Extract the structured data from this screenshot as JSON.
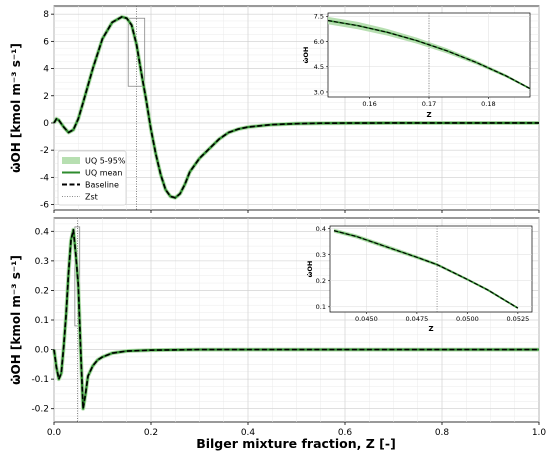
{
  "chart_data": [
    {
      "type": "line",
      "panel": "top",
      "ylabel": "ω̇OH [kmol m⁻³ s⁻¹]",
      "xlabel": "",
      "xlim": [
        0,
        1.0
      ],
      "ylim": [
        -6.4,
        8.6
      ],
      "yticks": [
        -6,
        -4,
        -2,
        0,
        2,
        4,
        6,
        8
      ],
      "xticks": [
        0.0,
        0.2,
        0.4,
        0.6,
        0.8,
        1.0
      ],
      "xtick_labels_visible": false,
      "grid": true,
      "legend_position": "lower-left",
      "legend": [
        "UQ 5-95%",
        "UQ mean",
        "Baseline",
        "Zst"
      ],
      "zst": 0.17,
      "zoom_box": {
        "x": [
          0.153,
          0.187
        ],
        "y": [
          2.7,
          7.7
        ]
      },
      "x": [
        0.0,
        0.005,
        0.01,
        0.02,
        0.03,
        0.04,
        0.05,
        0.06,
        0.08,
        0.1,
        0.12,
        0.14,
        0.15,
        0.16,
        0.17,
        0.18,
        0.19,
        0.2,
        0.21,
        0.22,
        0.23,
        0.24,
        0.25,
        0.26,
        0.27,
        0.28,
        0.3,
        0.32,
        0.34,
        0.36,
        0.38,
        0.4,
        0.45,
        0.5,
        0.55,
        0.6,
        0.7,
        0.8,
        0.9,
        1.0
      ],
      "series": [
        {
          "name": "UQ mean",
          "values": [
            0,
            0.3,
            0.2,
            -0.3,
            -0.7,
            -0.5,
            0.3,
            1.5,
            4.0,
            6.2,
            7.4,
            7.8,
            7.7,
            7.2,
            5.8,
            3.7,
            1.7,
            -0.5,
            -2.3,
            -3.8,
            -4.9,
            -5.4,
            -5.5,
            -5.2,
            -4.5,
            -3.6,
            -2.6,
            -1.9,
            -1.2,
            -0.7,
            -0.45,
            -0.3,
            -0.12,
            -0.05,
            -0.02,
            -0.01,
            0,
            0,
            0,
            0
          ]
        },
        {
          "name": "Baseline",
          "values": [
            0,
            0.3,
            0.2,
            -0.3,
            -0.7,
            -0.5,
            0.3,
            1.5,
            4.0,
            6.2,
            7.4,
            7.8,
            7.7,
            7.2,
            5.8,
            3.7,
            1.7,
            -0.5,
            -2.3,
            -3.8,
            -4.9,
            -5.4,
            -5.5,
            -5.2,
            -4.5,
            -3.6,
            -2.6,
            -1.9,
            -1.2,
            -0.7,
            -0.45,
            -0.3,
            -0.12,
            -0.05,
            -0.02,
            -0.01,
            0,
            0,
            0,
            0
          ]
        }
      ],
      "inset": {
        "xlabel": "Z",
        "ylabel": "ω̇OH",
        "xlim": [
          0.153,
          0.187
        ],
        "ylim": [
          2.7,
          7.7
        ],
        "xticks": [
          0.16,
          0.17,
          0.18
        ],
        "xtick_labels": [
          "0.16",
          "0.17",
          "0.18"
        ],
        "yticks": [
          3.0,
          4.5,
          6.0,
          7.5
        ],
        "ytick_labels": [
          "3.0",
          "4.5",
          "6.0",
          "7.5"
        ],
        "zst": 0.17,
        "x": [
          0.153,
          0.158,
          0.163,
          0.168,
          0.173,
          0.178,
          0.183,
          0.187
        ],
        "mean": [
          7.25,
          6.95,
          6.55,
          6.05,
          5.45,
          4.75,
          3.95,
          3.2
        ],
        "band_width": [
          0.22,
          0.22,
          0.2,
          0.18,
          0.15,
          0.12,
          0.09,
          0.06
        ]
      }
    },
    {
      "type": "line",
      "panel": "bottom",
      "ylabel": "ω̇OH [kmol m⁻³ s⁻¹]",
      "xlabel": "Bilger mixture fraction, Z [-]",
      "xlim": [
        0,
        1.0
      ],
      "ylim": [
        -0.245,
        0.445
      ],
      "yticks": [
        -0.2,
        -0.1,
        0.0,
        0.1,
        0.2,
        0.3,
        0.4
      ],
      "xticks": [
        0.0,
        0.2,
        0.4,
        0.6,
        0.8,
        1.0
      ],
      "grid": true,
      "zst": 0.0485,
      "zoom_box": {
        "x": [
          0.043,
          0.053
        ],
        "y": [
          0.08,
          0.415
        ]
      },
      "x": [
        0.0,
        0.005,
        0.01,
        0.015,
        0.02,
        0.025,
        0.03,
        0.035,
        0.04,
        0.045,
        0.05,
        0.055,
        0.06,
        0.065,
        0.07,
        0.08,
        0.09,
        0.1,
        0.12,
        0.15,
        0.2,
        0.3,
        0.4,
        0.6,
        0.8,
        1.0
      ],
      "series": [
        {
          "name": "UQ mean",
          "values": [
            0,
            -0.06,
            -0.1,
            -0.08,
            0.01,
            0.12,
            0.26,
            0.37,
            0.405,
            0.32,
            0.22,
            0.0,
            -0.2,
            -0.15,
            -0.09,
            -0.055,
            -0.035,
            -0.025,
            -0.012,
            -0.005,
            -0.002,
            0,
            0,
            0,
            0,
            0
          ]
        },
        {
          "name": "Baseline",
          "values": [
            0,
            -0.06,
            -0.1,
            -0.08,
            0.01,
            0.12,
            0.26,
            0.37,
            0.405,
            0.32,
            0.22,
            0.0,
            -0.2,
            -0.15,
            -0.09,
            -0.055,
            -0.035,
            -0.025,
            -0.012,
            -0.005,
            -0.002,
            0,
            0,
            0,
            0,
            0
          ]
        }
      ],
      "inset": {
        "xlabel": "Z",
        "ylabel": "ω̇OH",
        "xlim": [
          0.0432,
          0.0532
        ],
        "ylim": [
          0.08,
          0.41
        ],
        "xticks": [
          0.045,
          0.0475,
          0.05,
          0.0525
        ],
        "xtick_labels": [
          "0.0450",
          "0.0475",
          "0.0500",
          "0.0525"
        ],
        "yticks": [
          0.1,
          0.2,
          0.3,
          0.4
        ],
        "ytick_labels": [
          "0.1",
          "0.2",
          "0.3",
          "0.4"
        ],
        "zst": 0.0485,
        "x": [
          0.0434,
          0.0445,
          0.046,
          0.0475,
          0.0485,
          0.05,
          0.051,
          0.0525
        ],
        "mean": [
          0.392,
          0.37,
          0.33,
          0.29,
          0.262,
          0.205,
          0.165,
          0.095
        ],
        "band_width": [
          0.008,
          0.008,
          0.008,
          0.007,
          0.006,
          0.005,
          0.005,
          0.004
        ]
      }
    }
  ],
  "colors": {
    "uq_band": "#b7dfb1",
    "uq_mean": "#2e8b2e",
    "baseline": "#000000",
    "zst": "#666666",
    "zoom_box": "#888888"
  }
}
